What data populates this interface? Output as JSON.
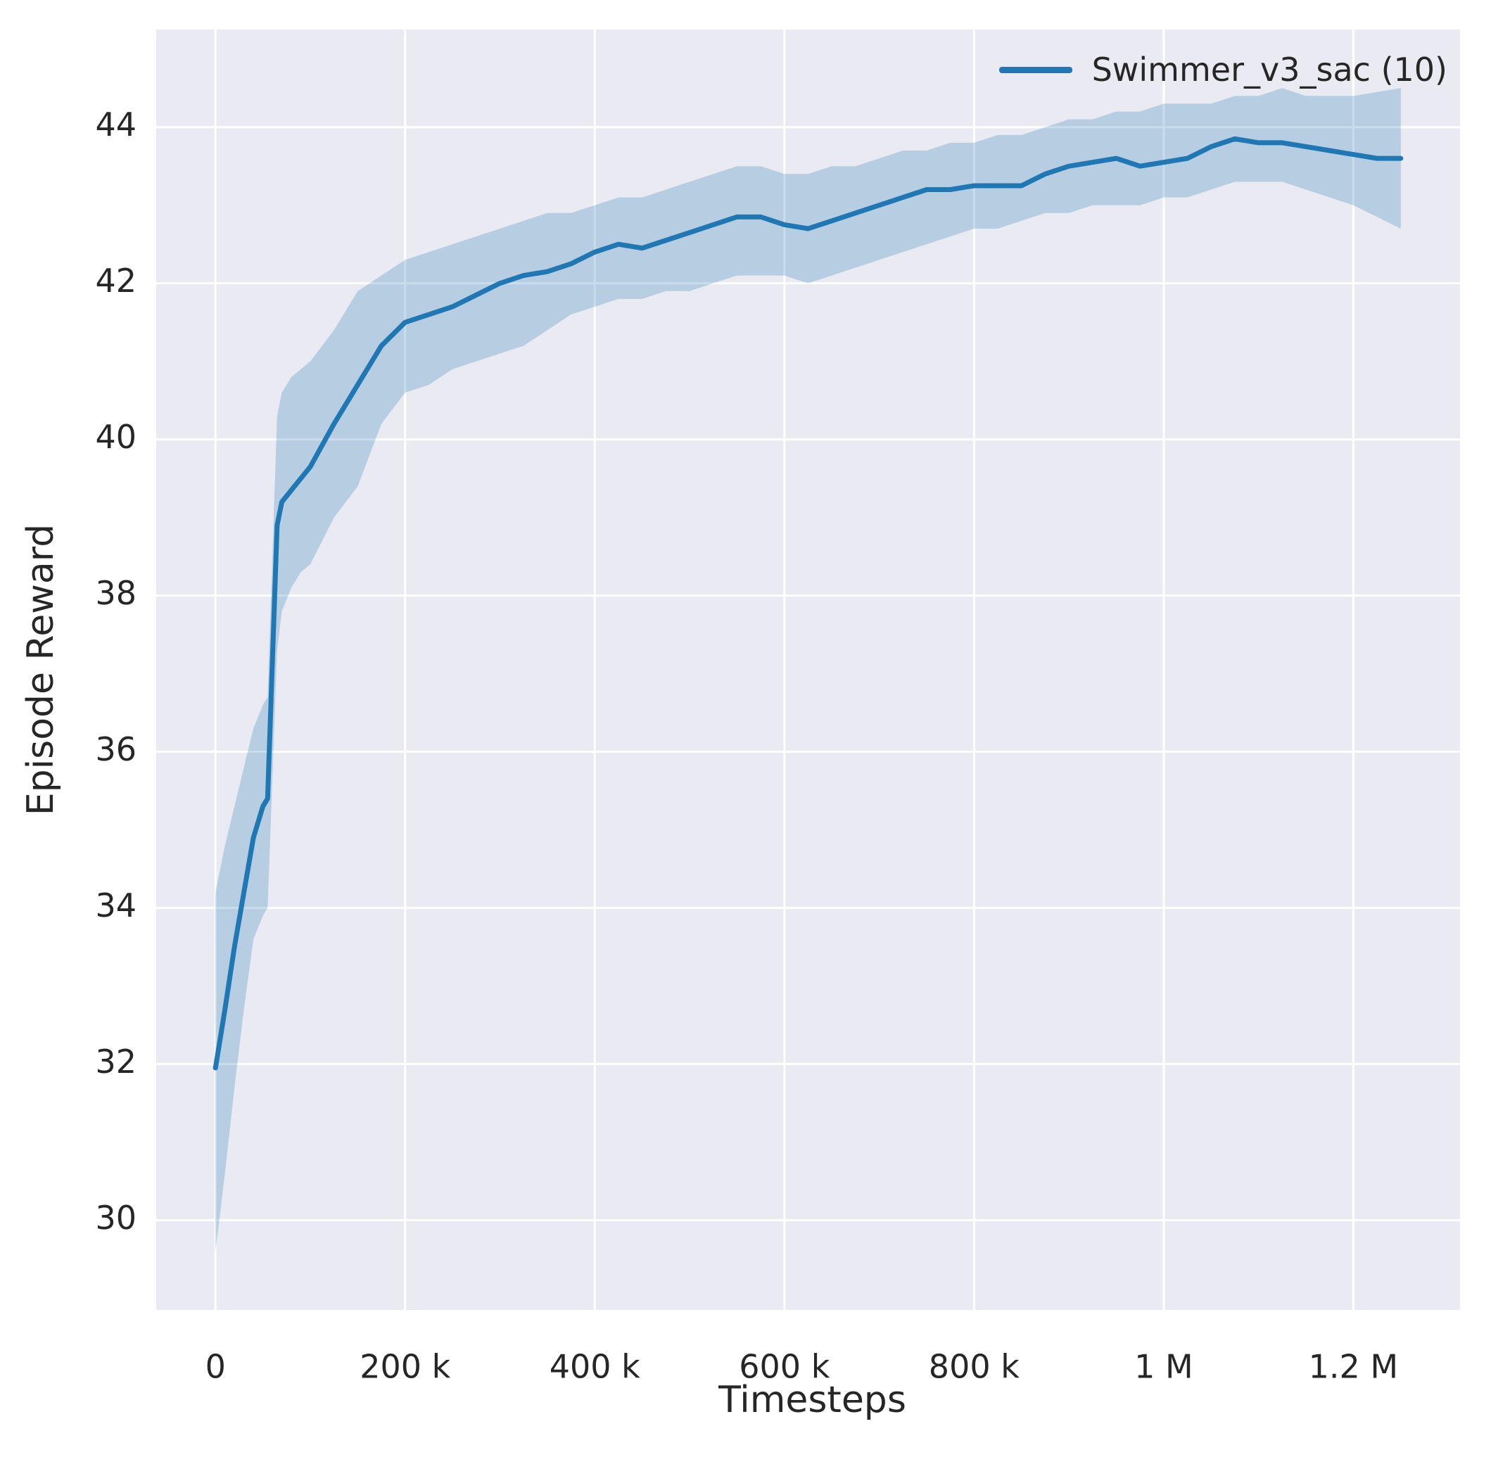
{
  "style": {
    "figure_background": "#ffffff",
    "plot_background": "#eaeaf2",
    "grid_color": "#ffffff",
    "text_color": "#262626",
    "accent_color": "#1f77b4"
  },
  "chart_data": {
    "type": "line",
    "title": "",
    "xlabel": "Timesteps",
    "ylabel": "Episode Reward",
    "grid": true,
    "legend_position": "upper right",
    "xlim": [
      -62500,
      1312500
    ],
    "ylim": [
      28.85,
      45.25
    ],
    "x_ticks": [
      {
        "value": 0,
        "label": "0"
      },
      {
        "value": 200000,
        "label": "200 k"
      },
      {
        "value": 400000,
        "label": "400 k"
      },
      {
        "value": 600000,
        "label": "600 k"
      },
      {
        "value": 800000,
        "label": "800 k"
      },
      {
        "value": 1000000,
        "label": "1 M"
      },
      {
        "value": 1200000,
        "label": "1.2 M"
      }
    ],
    "y_ticks": [
      {
        "value": 30,
        "label": "30"
      },
      {
        "value": 32,
        "label": "32"
      },
      {
        "value": 34,
        "label": "34"
      },
      {
        "value": 36,
        "label": "36"
      },
      {
        "value": 38,
        "label": "38"
      },
      {
        "value": 40,
        "label": "40"
      },
      {
        "value": 42,
        "label": "42"
      },
      {
        "value": 44,
        "label": "44"
      }
    ],
    "legend": [
      {
        "label": "Swimmer_v3_sac (10)",
        "color": "#1f77b4"
      }
    ],
    "series": [
      {
        "name": "Swimmer_v3_sac (10)",
        "color": "#1f77b4",
        "band_opacity": 0.25,
        "line_width": 7,
        "x": [
          0,
          10000,
          20000,
          30000,
          40000,
          50000,
          55000,
          65000,
          70000,
          80000,
          90000,
          100000,
          125000,
          150000,
          175000,
          200000,
          225000,
          250000,
          275000,
          300000,
          325000,
          350000,
          375000,
          400000,
          425000,
          450000,
          475000,
          500000,
          525000,
          550000,
          575000,
          600000,
          625000,
          650000,
          675000,
          700000,
          725000,
          750000,
          775000,
          800000,
          825000,
          850000,
          875000,
          900000,
          925000,
          950000,
          975000,
          1000000,
          1025000,
          1050000,
          1075000,
          1100000,
          1125000,
          1150000,
          1175000,
          1200000,
          1225000,
          1250000
        ],
        "mean": [
          31.95,
          32.7,
          33.5,
          34.2,
          34.9,
          35.3,
          35.4,
          38.9,
          39.2,
          39.35,
          39.5,
          39.65,
          40.2,
          40.7,
          41.2,
          41.5,
          41.6,
          41.7,
          41.85,
          42.0,
          42.1,
          42.15,
          42.25,
          42.4,
          42.5,
          42.45,
          42.55,
          42.65,
          42.75,
          42.85,
          42.85,
          42.75,
          42.7,
          42.8,
          42.9,
          43.0,
          43.1,
          43.2,
          43.2,
          43.25,
          43.25,
          43.25,
          43.4,
          43.5,
          43.55,
          43.6,
          43.5,
          43.55,
          43.6,
          43.75,
          43.85,
          43.8,
          43.8,
          43.75,
          43.7,
          43.65,
          43.6,
          43.6
        ],
        "lower": [
          29.6,
          30.6,
          31.7,
          32.7,
          33.6,
          33.9,
          34.0,
          37.3,
          37.8,
          38.1,
          38.3,
          38.4,
          39.0,
          39.4,
          40.2,
          40.6,
          40.7,
          40.9,
          41.0,
          41.1,
          41.2,
          41.4,
          41.6,
          41.7,
          41.8,
          41.8,
          41.9,
          41.9,
          42.0,
          42.1,
          42.1,
          42.1,
          42.0,
          42.1,
          42.2,
          42.3,
          42.4,
          42.5,
          42.6,
          42.7,
          42.7,
          42.8,
          42.9,
          42.9,
          43.0,
          43.0,
          43.0,
          43.1,
          43.1,
          43.2,
          43.3,
          43.3,
          43.3,
          43.2,
          43.1,
          43.0,
          42.85,
          42.7
        ],
        "upper": [
          34.2,
          34.8,
          35.3,
          35.8,
          36.3,
          36.6,
          36.7,
          40.3,
          40.6,
          40.8,
          40.9,
          41.0,
          41.4,
          41.9,
          42.1,
          42.3,
          42.4,
          42.5,
          42.6,
          42.7,
          42.8,
          42.9,
          42.9,
          43.0,
          43.1,
          43.1,
          43.2,
          43.3,
          43.4,
          43.5,
          43.5,
          43.4,
          43.4,
          43.5,
          43.5,
          43.6,
          43.7,
          43.7,
          43.8,
          43.8,
          43.9,
          43.9,
          44.0,
          44.1,
          44.1,
          44.2,
          44.2,
          44.3,
          44.3,
          44.3,
          44.4,
          44.4,
          44.5,
          44.4,
          44.4,
          44.4,
          44.45,
          44.5
        ]
      }
    ]
  }
}
